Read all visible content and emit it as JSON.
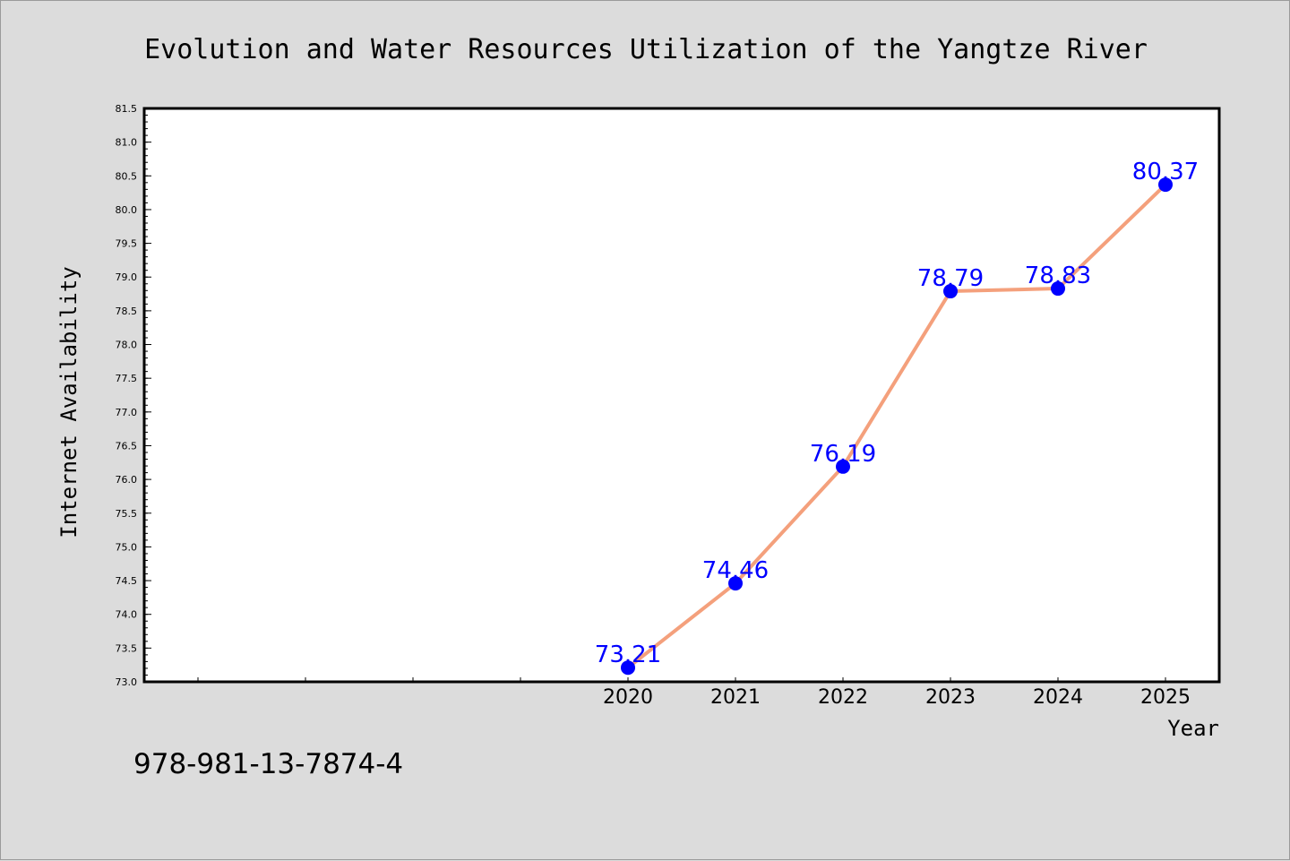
{
  "chart_data": {
    "type": "line",
    "title": "Evolution and Water Resources Utilization of the Yangtze River",
    "xlabel": "Year",
    "ylabel": "Internet Availability",
    "categories": [
      "2020",
      "2021",
      "2022",
      "2023",
      "2024",
      "2025"
    ],
    "series": [
      {
        "values": [
          73.21,
          74.46,
          76.19,
          78.79,
          78.83,
          80.37
        ],
        "labels": [
          "73.21",
          "74.46",
          "76.19",
          "78.79",
          "78.83",
          "80.37"
        ]
      }
    ],
    "x_domain": [
      2015.5,
      2025.5
    ],
    "ylim": [
      73.0,
      81.5
    ],
    "y_ticks": [
      "73.0",
      "73.5",
      "74.0",
      "74.5",
      "75.0",
      "75.5",
      "76.0",
      "76.5",
      "77.0",
      "77.5",
      "78.0",
      "78.5",
      "79.0",
      "79.5",
      "80.0",
      "80.5",
      "81.0",
      "81.5"
    ],
    "grid": false,
    "legend": "none",
    "colors": {
      "line": "#f4a07c",
      "marker": "#0000ff",
      "data_label": "#0000ff",
      "background": "#dcdcdc",
      "plot_background": "#ffffff"
    }
  },
  "footer": {
    "isbn": "978-981-13-7874-4"
  }
}
